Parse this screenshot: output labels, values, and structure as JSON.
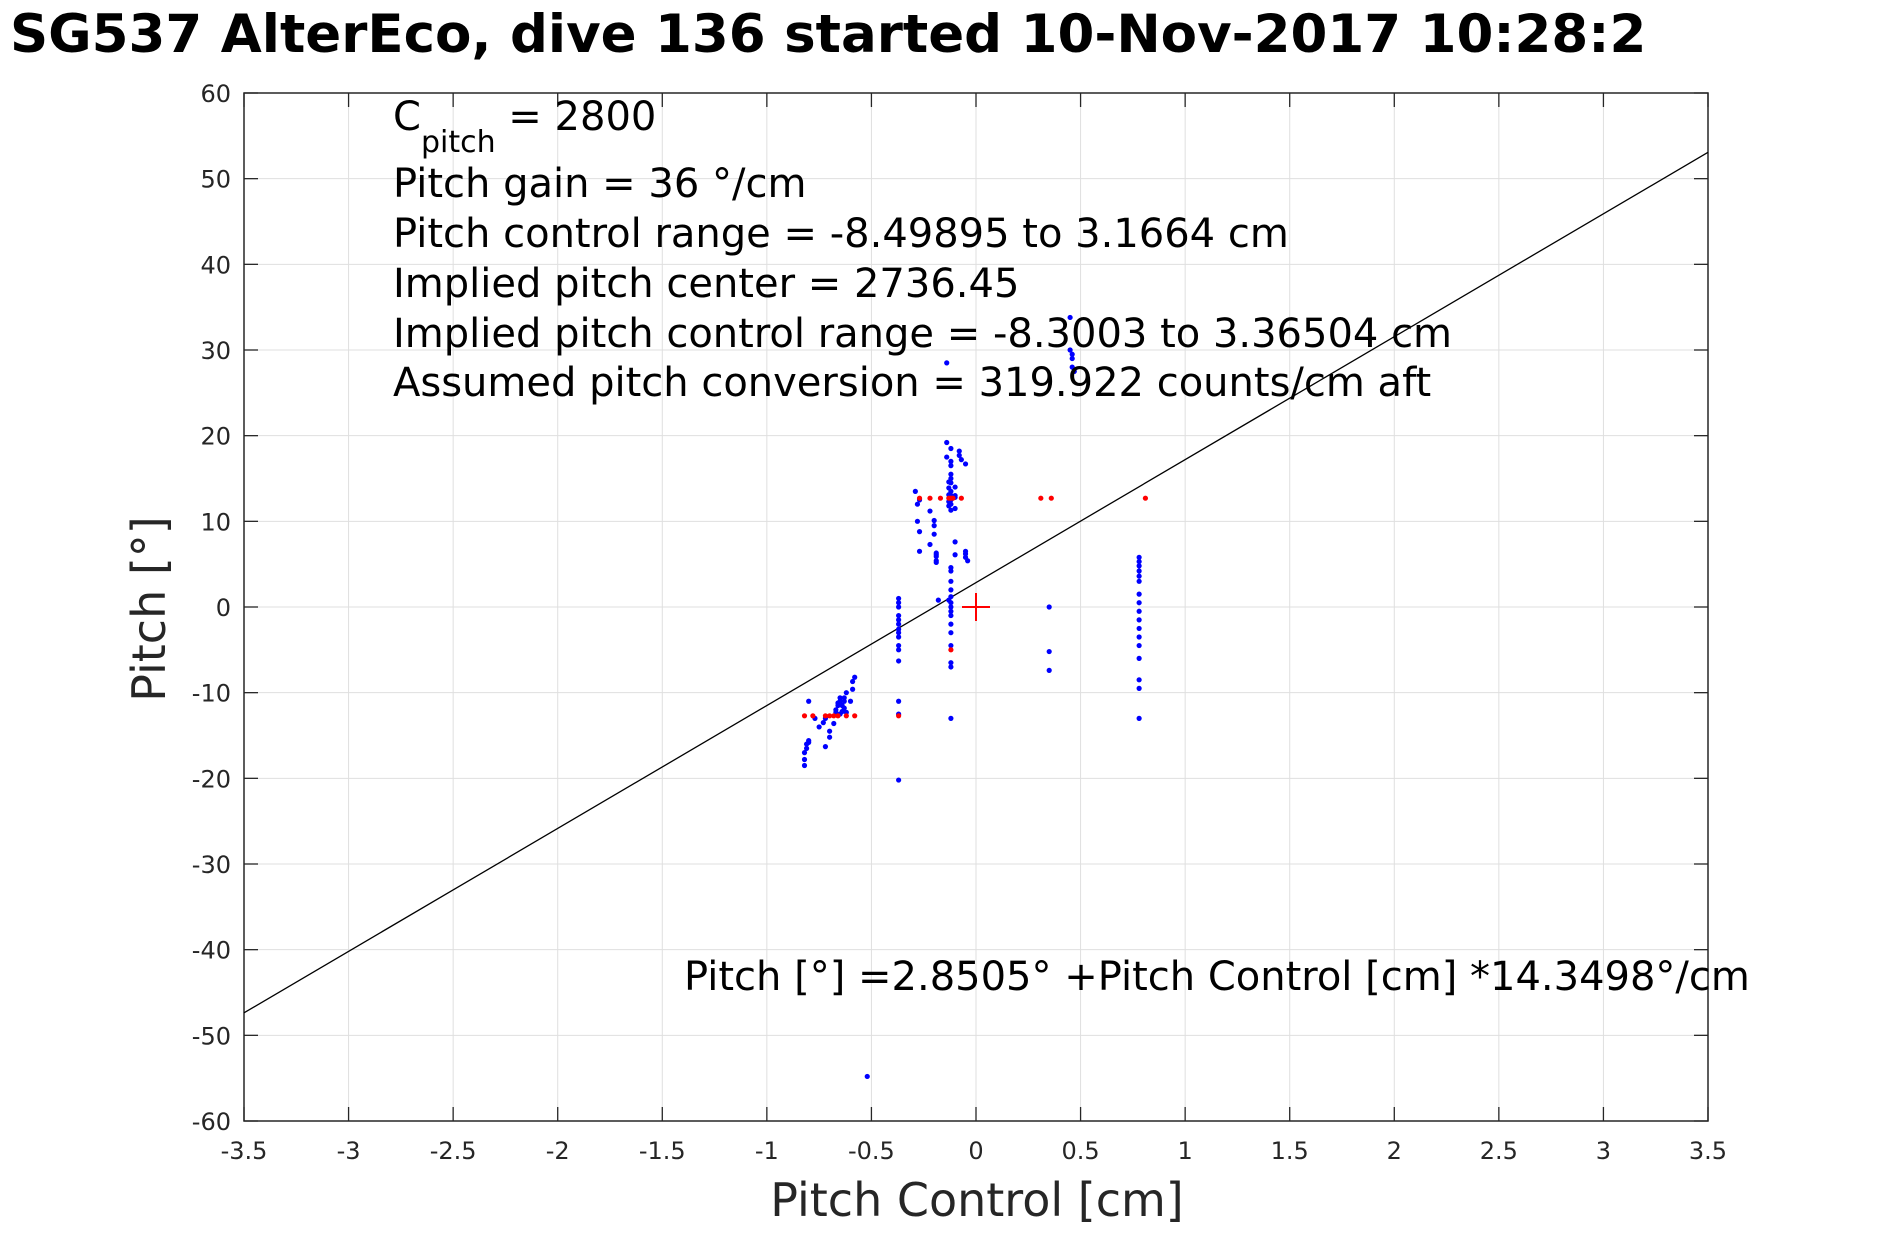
{
  "chart_data": {
    "type": "scatter",
    "title": "SG537 AlterEco, dive 136 started 10-Nov-2017 10:28:2",
    "xlabel": "Pitch Control [cm]",
    "ylabel": "Pitch [°]",
    "xlim": [
      -3.5,
      3.5
    ],
    "ylim": [
      -60,
      60
    ],
    "xticks": [
      -3.5,
      -3,
      -2.5,
      -2,
      -1.5,
      -1,
      -0.5,
      0,
      0.5,
      1,
      1.5,
      2,
      2.5,
      3,
      3.5
    ],
    "xtick_labels": [
      "-3.5",
      "-3",
      "-2.5",
      "-2",
      "-1.5",
      "-1",
      "-0.5",
      "0",
      "0.5",
      "1",
      "1.5",
      "2",
      "2.5",
      "3",
      "3.5"
    ],
    "yticks": [
      60,
      50,
      40,
      30,
      20,
      10,
      0,
      -10,
      -20,
      -30,
      -40,
      -50,
      -60
    ],
    "ytick_labels": [
      "60",
      "50",
      "40",
      "30",
      "20",
      "10",
      "0",
      "-10",
      "-20",
      "-30",
      "-40",
      "-50",
      "-60"
    ],
    "grid": true,
    "annotations": {
      "c_pitch_prefix": "C",
      "c_pitch_sub": "pitch",
      "c_pitch_value": " = 2800",
      "pitch_gain": "Pitch gain = 36 °/cm",
      "control_range": "Pitch control range = -8.49895 to 3.1664 cm",
      "implied_center": "Implied pitch center = 2736.45",
      "implied_range": "Implied pitch control range = -8.3003 to 3.36504 cm",
      "assumed_conversion": "Assumed pitch conversion = 319.922 counts/cm aft",
      "fit_equation": "Pitch [°] =2.8505° +Pitch Control [cm] *14.3498°/cm"
    },
    "fit_line": {
      "intercept": 2.8505,
      "slope": 14.3498,
      "color": "#000000"
    },
    "center_marker": {
      "x": 0,
      "y": 0,
      "color": "#ff0000"
    },
    "series": [
      {
        "color": "#0000ff",
        "x": [
          -0.82,
          -0.82,
          -0.82,
          -0.81,
          -0.81,
          -0.8,
          -0.8,
          -0.8,
          -0.77,
          -0.75,
          -0.73,
          -0.72,
          -0.72,
          -0.7,
          -0.7,
          -0.68,
          -0.67,
          -0.67,
          -0.66,
          -0.66,
          -0.65,
          -0.65,
          -0.65,
          -0.64,
          -0.64,
          -0.63,
          -0.63,
          -0.63,
          -0.62,
          -0.62,
          -0.6,
          -0.59,
          -0.59,
          -0.58,
          -0.52,
          -0.37,
          -0.37,
          -0.37,
          -0.37,
          -0.37,
          -0.37,
          -0.37,
          -0.37,
          -0.37,
          -0.37,
          -0.37,
          -0.37,
          -0.37,
          -0.37,
          -0.37,
          -0.29,
          -0.28,
          -0.28,
          -0.27,
          -0.27,
          -0.27,
          -0.22,
          -0.22,
          -0.2,
          -0.2,
          -0.2,
          -0.19,
          -0.19,
          -0.19,
          -0.19,
          -0.19,
          -0.18,
          -0.14,
          -0.14,
          -0.14,
          -0.13,
          -0.13,
          -0.13,
          -0.13,
          -0.13,
          -0.13,
          -0.12,
          -0.12,
          -0.12,
          -0.12,
          -0.12,
          -0.12,
          -0.12,
          -0.12,
          -0.12,
          -0.12,
          -0.12,
          -0.12,
          -0.12,
          -0.12,
          -0.12,
          -0.12,
          -0.12,
          -0.12,
          -0.12,
          -0.12,
          -0.12,
          -0.12,
          -0.12,
          -0.12,
          -0.12,
          -0.12,
          -0.1,
          -0.1,
          -0.1,
          -0.1,
          -0.1,
          -0.1,
          -0.08,
          -0.08,
          -0.07,
          -0.05,
          -0.05,
          -0.05,
          -0.05,
          -0.04,
          0.35,
          0.35,
          0.35,
          0.45,
          0.45,
          0.46,
          0.46,
          0.46,
          0.47,
          0.78,
          0.78,
          0.78,
          0.78,
          0.78,
          0.78,
          0.78,
          0.78,
          0.78,
          0.78,
          0.78,
          0.78,
          0.78,
          0.78,
          0.78,
          0.78,
          0.78
        ],
        "y": [
          -18.5,
          -17.8,
          -17,
          -16.5,
          -16,
          -15.8,
          -15.6,
          -11,
          -13,
          -14,
          -13.5,
          -16.3,
          -13,
          -14.5,
          -15.2,
          -13.6,
          -12.3,
          -12,
          -11.5,
          -11.2,
          -11,
          -10.6,
          -12.5,
          -11.5,
          -12.2,
          -10.6,
          -11,
          -11.8,
          -10,
          -12.3,
          -11,
          -9.6,
          -8.7,
          -8.2,
          -54.8,
          1,
          0.5,
          0,
          -1,
          -1.5,
          -2,
          -3,
          -3.5,
          -4.5,
          -5,
          -6.3,
          -11,
          -12.5,
          -20.2,
          -2.6,
          13.5,
          12,
          10,
          8.8,
          6.5,
          12.5,
          7.3,
          11.2,
          10.1,
          9.5,
          8.5,
          6.3,
          6.1,
          5.9,
          5.4,
          5.2,
          0.8,
          19.2,
          17.5,
          28.5,
          14.6,
          13.9,
          13.1,
          12.3,
          11.8,
          0.8,
          18.5,
          17,
          16.5,
          15.5,
          15,
          14.5,
          13.5,
          13,
          12.5,
          12,
          11.3,
          4.6,
          4.2,
          3,
          2,
          1.2,
          0.5,
          0,
          -0.5,
          -1,
          -2,
          -3,
          -4.5,
          -6.5,
          -7,
          -13,
          14,
          13,
          12.8,
          11.5,
          7.6,
          6.1,
          18.2,
          17.7,
          17.2,
          16.7,
          6.5,
          6.2,
          5.8,
          5.4,
          0,
          -5.2,
          -7.4,
          33.8,
          30,
          29.5,
          29,
          28,
          27.5,
          5.8,
          5.3,
          4.8,
          4.2,
          3.6,
          3,
          1.5,
          0.5,
          -0.5,
          -1.5,
          -2.5,
          -3.5,
          -4.5,
          -6,
          -8.5,
          -9.5,
          -13
        ]
      },
      {
        "color": "#ff0000",
        "x": [
          -0.82,
          -0.78,
          -0.72,
          -0.7,
          -0.68,
          -0.66,
          -0.62,
          -0.58,
          -0.37,
          -0.27,
          -0.22,
          -0.17,
          -0.13,
          -0.12,
          -0.11,
          -0.12,
          -0.07,
          0.31,
          0.36,
          0.81
        ],
        "y": [
          -12.7,
          -12.7,
          -12.7,
          -12.7,
          -12.7,
          -12.7,
          -12.7,
          -12.7,
          -12.7,
          12.7,
          12.7,
          12.7,
          12.7,
          12.7,
          12.7,
          -5,
          12.7,
          12.7,
          12.7,
          12.7
        ]
      }
    ]
  }
}
